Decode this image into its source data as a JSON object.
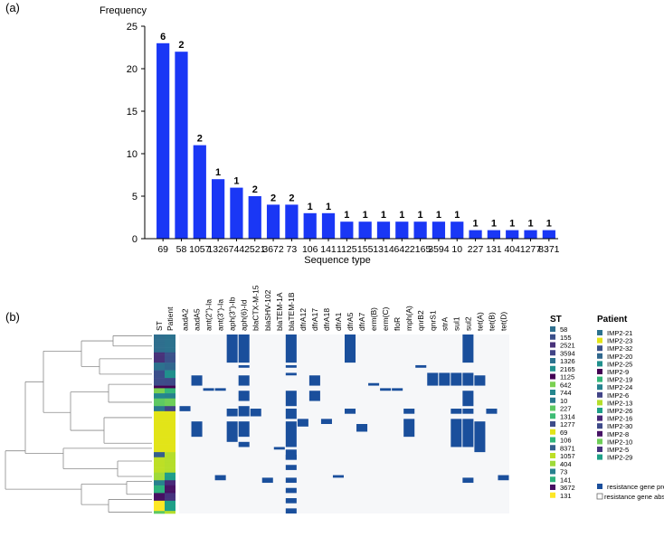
{
  "chart_data": [
    {
      "type": "bar",
      "panel_label": "(a)",
      "title": "",
      "ylabel": "Frequency",
      "xlabel": "Sequence type",
      "ylim": [
        0,
        25
      ],
      "yticks": [
        0,
        5,
        10,
        15,
        20,
        25
      ],
      "bar_color": "#1a37f5",
      "categories": [
        "69",
        "58",
        "1057",
        "1326",
        "744",
        "2521",
        "3672",
        "73",
        "106",
        "141",
        "1125",
        "155",
        "1314",
        "642",
        "2165",
        "3594",
        "10",
        "227",
        "131",
        "404",
        "1277",
        "8371"
      ],
      "values": [
        23,
        22,
        11,
        7,
        6,
        5,
        4,
        4,
        3,
        3,
        2,
        2,
        2,
        2,
        2,
        2,
        2,
        1,
        1,
        1,
        1,
        1
      ],
      "patient_counts": [
        "6",
        "2",
        "2",
        "1",
        "1",
        "2",
        "2",
        "2",
        "1",
        "1",
        "1",
        "1",
        "1",
        "1",
        "1",
        "1",
        "1",
        "1",
        "1",
        "1",
        "1",
        "1"
      ]
    },
    {
      "type": "heatmap",
      "panel_label": "(b)",
      "present_color": "#1a4f9c",
      "absent_color": "#f6f7f9",
      "column_labels": [
        "ST",
        "Patient",
        "aadA2",
        "aadA5",
        "ant(2\")-Ia",
        "ant(3\")-Ia",
        "aph(3\")-Ib",
        "aph(6)-Id",
        "blaCTX-M-15",
        "blaSHV-102",
        "blaTEM-1A",
        "blaTEM-1B",
        "dfrA12",
        "dfrA17",
        "dfrA18",
        "dfrA1",
        "dfrA5",
        "dfrA7",
        "erm(B)",
        "erm(C)",
        "floR",
        "mph(A)",
        "qnrB2",
        "qnrS1",
        "strA",
        "sul1",
        "sul2",
        "tet(A)",
        "tet(B)",
        "tet(D)"
      ],
      "legend_st_title": "ST",
      "legend_st": [
        {
          "label": "58",
          "color": "#2f6f8e"
        },
        {
          "label": "155",
          "color": "#3b4f8a"
        },
        {
          "label": "2521",
          "color": "#48327a"
        },
        {
          "label": "3594",
          "color": "#414487"
        },
        {
          "label": "1326",
          "color": "#2c728e"
        },
        {
          "label": "2165",
          "color": "#21908d"
        },
        {
          "label": "1125",
          "color": "#440154"
        },
        {
          "label": "642",
          "color": "#7ad151"
        },
        {
          "label": "744",
          "color": "#24868e"
        },
        {
          "label": "10",
          "color": "#2a788e"
        },
        {
          "label": "227",
          "color": "#5ec962"
        },
        {
          "label": "1314",
          "color": "#3dbc74"
        },
        {
          "label": "1277",
          "color": "#3e4c8a"
        },
        {
          "label": "69",
          "color": "#e2e418"
        },
        {
          "label": "106",
          "color": "#31b57b"
        },
        {
          "label": "8371",
          "color": "#355f8d"
        },
        {
          "label": "1057",
          "color": "#bddf26"
        },
        {
          "label": "404",
          "color": "#9fda3a"
        },
        {
          "label": "73",
          "color": "#27808e"
        },
        {
          "label": "141",
          "color": "#2db27d"
        },
        {
          "label": "3672",
          "color": "#471063"
        },
        {
          "label": "131",
          "color": "#fde725"
        }
      ],
      "legend_patient_title": "Patient",
      "legend_patient": [
        {
          "label": "IMP2-21",
          "color": "#2c728e"
        },
        {
          "label": "IMP2-23",
          "color": "#e2e418"
        },
        {
          "label": "IMP2-32",
          "color": "#3b528b"
        },
        {
          "label": "IMP2-20",
          "color": "#31688e"
        },
        {
          "label": "IMP2-25",
          "color": "#21908d"
        },
        {
          "label": "IMP2-9",
          "color": "#440154"
        },
        {
          "label": "IMP2-19",
          "color": "#35b779"
        },
        {
          "label": "IMP2-24",
          "color": "#26828e"
        },
        {
          "label": "IMP2-6",
          "color": "#414487"
        },
        {
          "label": "IMP2-13",
          "color": "#b5de2b"
        },
        {
          "label": "IMP2-26",
          "color": "#1f9e89"
        },
        {
          "label": "IMP2-16",
          "color": "#482878"
        },
        {
          "label": "IMP2-30",
          "color": "#3e4a89"
        },
        {
          "label": "IMP2-8",
          "color": "#471365"
        },
        {
          "label": "IMP2-10",
          "color": "#6ece58"
        },
        {
          "label": "IMP2-5",
          "color": "#46337e"
        },
        {
          "label": "IMP2-29",
          "color": "#1fa088"
        }
      ],
      "legend_present_label": "resistance gene present",
      "legend_absent_label": "resistance gene absent"
    }
  ]
}
